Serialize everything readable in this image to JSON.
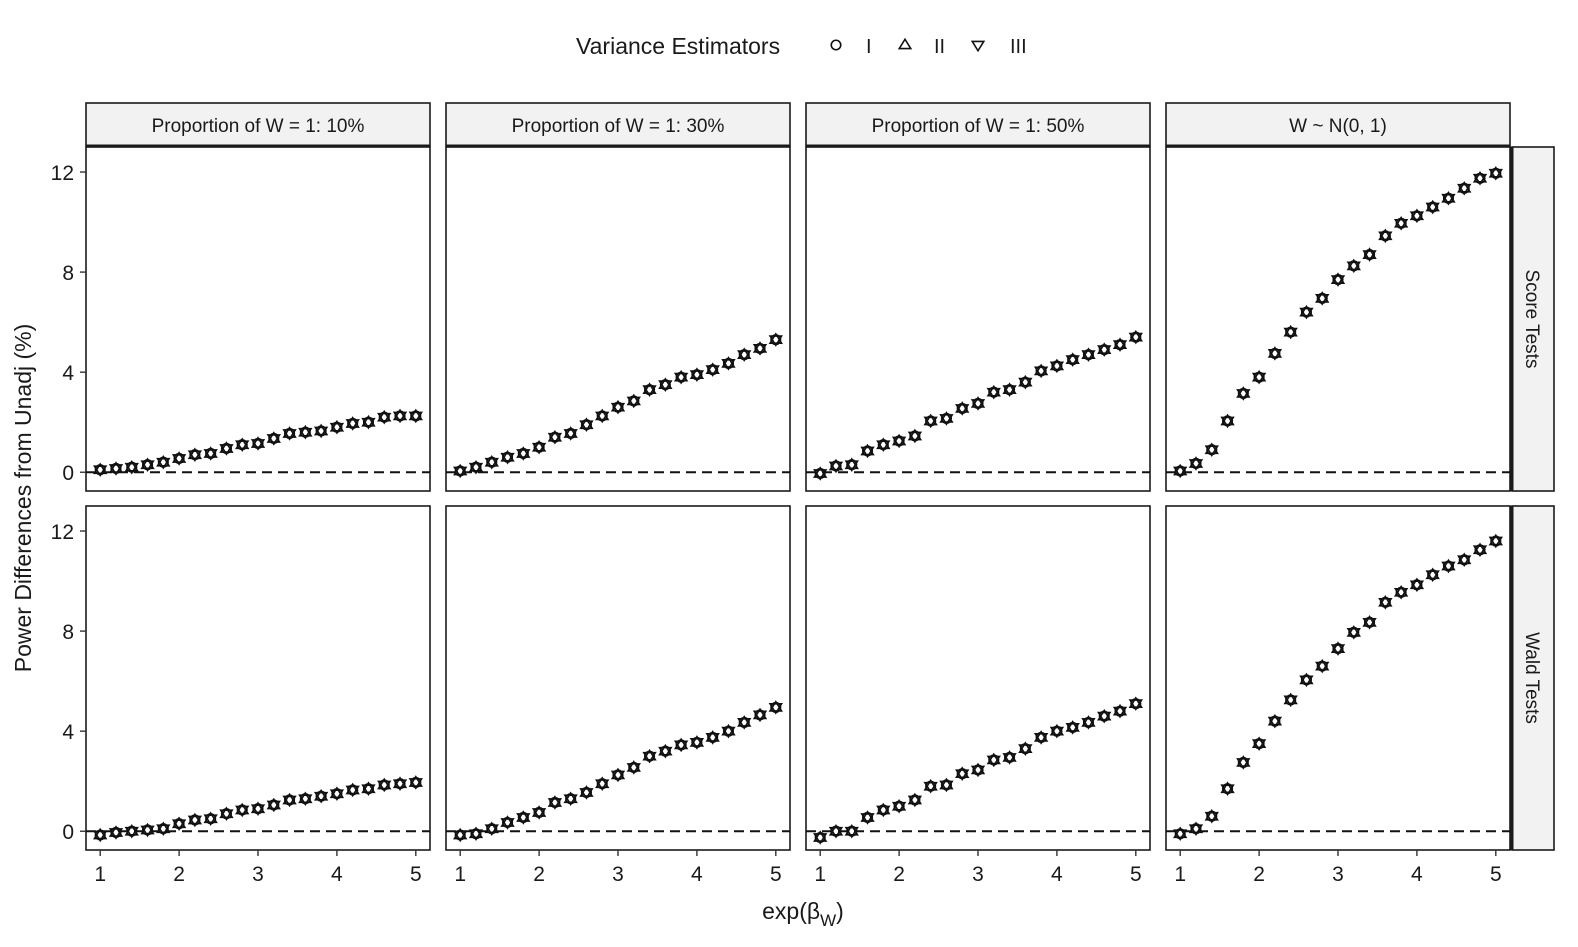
{
  "legend": {
    "title": "Variance Estimators",
    "entries": [
      {
        "label": "I",
        "shape": "circle"
      },
      {
        "label": "II",
        "shape": "triangle-up"
      },
      {
        "label": "III",
        "shape": "triangle-down"
      }
    ]
  },
  "chart_data": {
    "type": "scatter",
    "facet": "grid",
    "xlabel": "exp(",
    "xlabel_symbol": "β",
    "xlabel_subscript": "W",
    "xlabel_close": ")",
    "ylabel": "Power Differences from Unadj (%)",
    "xlim": [
      0.82,
      5.18
    ],
    "x_ticks": [
      "1",
      "2",
      "3",
      "4",
      "5"
    ],
    "x_tick_values": [
      1,
      2,
      3,
      4,
      5
    ],
    "ylim": [
      -0.75,
      13.0
    ],
    "y_ticks": [
      "0",
      "4",
      "8",
      "12"
    ],
    "y_tick_values": [
      0,
      4,
      8,
      12
    ],
    "reference_line": 0,
    "columns": [
      "Proportion of W = 1: 10%",
      "Proportion of W = 1: 30%",
      "Proportion of W = 1: 50%",
      "W ~ N(0, 1)"
    ],
    "rows": [
      "Score Tests",
      "Wald Tests"
    ],
    "x": [
      1.0,
      1.2,
      1.4,
      1.6,
      1.8,
      2.0,
      2.2,
      2.4,
      2.6,
      2.8,
      3.0,
      3.2,
      3.4,
      3.6,
      3.8,
      4.0,
      4.2,
      4.4,
      4.6,
      4.8,
      5.0
    ],
    "series_names": [
      "I",
      "II",
      "III"
    ],
    "panels": [
      {
        "row": "Score Tests",
        "col": "Proportion of W = 1: 10%",
        "values": [
          0.1,
          0.15,
          0.2,
          0.3,
          0.4,
          0.55,
          0.7,
          0.75,
          0.95,
          1.1,
          1.15,
          1.35,
          1.55,
          1.6,
          1.65,
          1.8,
          1.95,
          2.0,
          2.2,
          2.25,
          2.25
        ]
      },
      {
        "row": "Score Tests",
        "col": "Proportion of W = 1: 30%",
        "values": [
          0.05,
          0.2,
          0.4,
          0.6,
          0.75,
          1.0,
          1.4,
          1.55,
          1.9,
          2.25,
          2.6,
          2.85,
          3.3,
          3.5,
          3.8,
          3.9,
          4.1,
          4.35,
          4.7,
          4.95,
          5.3
        ]
      },
      {
        "row": "Score Tests",
        "col": "Proportion of W = 1: 50%",
        "values": [
          -0.05,
          0.25,
          0.3,
          0.85,
          1.1,
          1.25,
          1.45,
          2.05,
          2.15,
          2.55,
          2.75,
          3.2,
          3.3,
          3.6,
          4.05,
          4.25,
          4.5,
          4.7,
          4.9,
          5.1,
          5.4
        ]
      },
      {
        "row": "Score Tests",
        "col": "W ~ N(0, 1)",
        "values": [
          0.05,
          0.35,
          0.9,
          2.05,
          3.15,
          3.8,
          4.75,
          5.6,
          6.4,
          6.95,
          7.7,
          8.25,
          8.7,
          9.45,
          9.95,
          10.25,
          10.6,
          10.95,
          11.35,
          11.75,
          11.95
        ]
      },
      {
        "row": "Wald Tests",
        "col": "Proportion of W = 1: 10%",
        "values": [
          -0.15,
          -0.05,
          0.0,
          0.05,
          0.1,
          0.3,
          0.45,
          0.5,
          0.7,
          0.85,
          0.9,
          1.05,
          1.25,
          1.3,
          1.4,
          1.5,
          1.65,
          1.7,
          1.85,
          1.9,
          1.95
        ]
      },
      {
        "row": "Wald Tests",
        "col": "Proportion of W = 1: 30%",
        "values": [
          -0.15,
          -0.1,
          0.1,
          0.35,
          0.55,
          0.75,
          1.15,
          1.3,
          1.55,
          1.9,
          2.25,
          2.55,
          3.0,
          3.2,
          3.45,
          3.55,
          3.75,
          4.0,
          4.35,
          4.65,
          4.95
        ]
      },
      {
        "row": "Wald Tests",
        "col": "Proportion of W = 1: 50%",
        "values": [
          -0.25,
          0.0,
          0.0,
          0.55,
          0.85,
          1.0,
          1.25,
          1.8,
          1.85,
          2.3,
          2.45,
          2.85,
          2.95,
          3.3,
          3.75,
          4.0,
          4.15,
          4.35,
          4.6,
          4.8,
          5.1
        ]
      },
      {
        "row": "Wald Tests",
        "col": "W ~ N(0, 1)",
        "values": [
          -0.1,
          0.1,
          0.6,
          1.7,
          2.75,
          3.5,
          4.4,
          5.25,
          6.05,
          6.6,
          7.3,
          7.95,
          8.35,
          9.15,
          9.55,
          9.85,
          10.25,
          10.6,
          10.85,
          11.25,
          11.6
        ]
      }
    ]
  }
}
